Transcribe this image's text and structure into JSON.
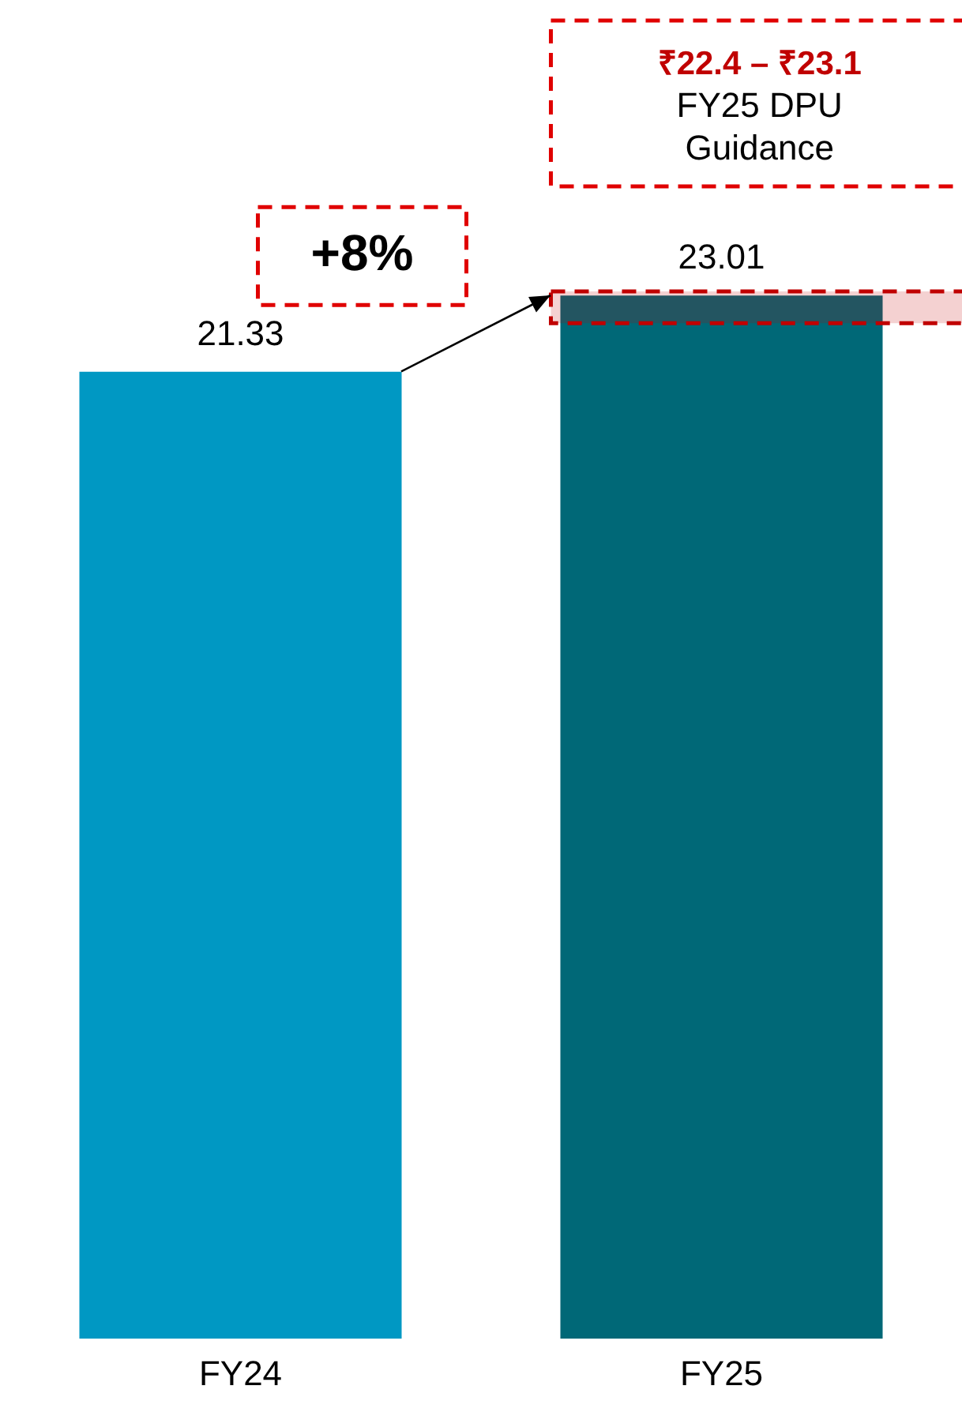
{
  "chart_data": {
    "type": "bar",
    "categories": [
      "FY24",
      "FY25"
    ],
    "values": [
      21.33,
      23.01
    ],
    "colors": [
      "#0098c3",
      "#006877"
    ],
    "tick_labels": "x",
    "grid": false,
    "legend": false,
    "data_labels": true,
    "bands": [
      {
        "axis": "y",
        "from": 22.4,
        "to": 23.1,
        "color": "#c00000"
      }
    ],
    "annotations": [
      "+8%",
      "₹22.4 – ₹23.1",
      "FY25 DPU Guidance"
    ]
  }
}
